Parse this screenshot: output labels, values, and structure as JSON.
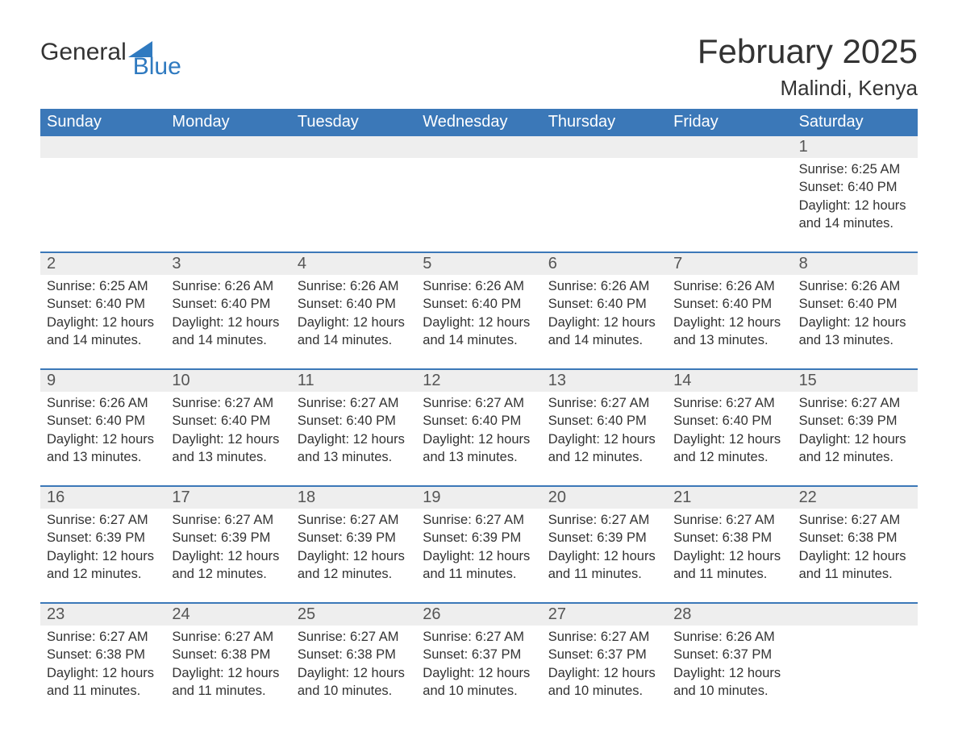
{
  "logo": {
    "text1": "General",
    "text2": "Blue"
  },
  "title": "February 2025",
  "location": "Malindi, Kenya",
  "colors": {
    "header_bg": "#3b78b8",
    "header_text": "#ffffff",
    "daynum_bg": "#eeeeee",
    "daynum_text": "#555555",
    "body_text": "#333333",
    "logo_blue": "#2f7ac0",
    "week_border": "#3b78b8",
    "page_bg": "#ffffff"
  },
  "fonts": {
    "title_size_pt": 32,
    "location_size_pt": 20,
    "weekday_size_pt": 15,
    "daynum_size_pt": 15,
    "body_size_pt": 12
  },
  "weekdays": [
    "Sunday",
    "Monday",
    "Tuesday",
    "Wednesday",
    "Thursday",
    "Friday",
    "Saturday"
  ],
  "weeks": [
    {
      "nums": [
        "",
        "",
        "",
        "",
        "",
        "",
        "1"
      ],
      "cells": [
        {},
        {},
        {},
        {},
        {},
        {},
        {
          "sunrise": "Sunrise: 6:25 AM",
          "sunset": "Sunset: 6:40 PM",
          "daylight1": "Daylight: 12 hours",
          "daylight2": "and 14 minutes."
        }
      ]
    },
    {
      "nums": [
        "2",
        "3",
        "4",
        "5",
        "6",
        "7",
        "8"
      ],
      "cells": [
        {
          "sunrise": "Sunrise: 6:25 AM",
          "sunset": "Sunset: 6:40 PM",
          "daylight1": "Daylight: 12 hours",
          "daylight2": "and 14 minutes."
        },
        {
          "sunrise": "Sunrise: 6:26 AM",
          "sunset": "Sunset: 6:40 PM",
          "daylight1": "Daylight: 12 hours",
          "daylight2": "and 14 minutes."
        },
        {
          "sunrise": "Sunrise: 6:26 AM",
          "sunset": "Sunset: 6:40 PM",
          "daylight1": "Daylight: 12 hours",
          "daylight2": "and 14 minutes."
        },
        {
          "sunrise": "Sunrise: 6:26 AM",
          "sunset": "Sunset: 6:40 PM",
          "daylight1": "Daylight: 12 hours",
          "daylight2": "and 14 minutes."
        },
        {
          "sunrise": "Sunrise: 6:26 AM",
          "sunset": "Sunset: 6:40 PM",
          "daylight1": "Daylight: 12 hours",
          "daylight2": "and 14 minutes."
        },
        {
          "sunrise": "Sunrise: 6:26 AM",
          "sunset": "Sunset: 6:40 PM",
          "daylight1": "Daylight: 12 hours",
          "daylight2": "and 13 minutes."
        },
        {
          "sunrise": "Sunrise: 6:26 AM",
          "sunset": "Sunset: 6:40 PM",
          "daylight1": "Daylight: 12 hours",
          "daylight2": "and 13 minutes."
        }
      ]
    },
    {
      "nums": [
        "9",
        "10",
        "11",
        "12",
        "13",
        "14",
        "15"
      ],
      "cells": [
        {
          "sunrise": "Sunrise: 6:26 AM",
          "sunset": "Sunset: 6:40 PM",
          "daylight1": "Daylight: 12 hours",
          "daylight2": "and 13 minutes."
        },
        {
          "sunrise": "Sunrise: 6:27 AM",
          "sunset": "Sunset: 6:40 PM",
          "daylight1": "Daylight: 12 hours",
          "daylight2": "and 13 minutes."
        },
        {
          "sunrise": "Sunrise: 6:27 AM",
          "sunset": "Sunset: 6:40 PM",
          "daylight1": "Daylight: 12 hours",
          "daylight2": "and 13 minutes."
        },
        {
          "sunrise": "Sunrise: 6:27 AM",
          "sunset": "Sunset: 6:40 PM",
          "daylight1": "Daylight: 12 hours",
          "daylight2": "and 13 minutes."
        },
        {
          "sunrise": "Sunrise: 6:27 AM",
          "sunset": "Sunset: 6:40 PM",
          "daylight1": "Daylight: 12 hours",
          "daylight2": "and 12 minutes."
        },
        {
          "sunrise": "Sunrise: 6:27 AM",
          "sunset": "Sunset: 6:40 PM",
          "daylight1": "Daylight: 12 hours",
          "daylight2": "and 12 minutes."
        },
        {
          "sunrise": "Sunrise: 6:27 AM",
          "sunset": "Sunset: 6:39 PM",
          "daylight1": "Daylight: 12 hours",
          "daylight2": "and 12 minutes."
        }
      ]
    },
    {
      "nums": [
        "16",
        "17",
        "18",
        "19",
        "20",
        "21",
        "22"
      ],
      "cells": [
        {
          "sunrise": "Sunrise: 6:27 AM",
          "sunset": "Sunset: 6:39 PM",
          "daylight1": "Daylight: 12 hours",
          "daylight2": "and 12 minutes."
        },
        {
          "sunrise": "Sunrise: 6:27 AM",
          "sunset": "Sunset: 6:39 PM",
          "daylight1": "Daylight: 12 hours",
          "daylight2": "and 12 minutes."
        },
        {
          "sunrise": "Sunrise: 6:27 AM",
          "sunset": "Sunset: 6:39 PM",
          "daylight1": "Daylight: 12 hours",
          "daylight2": "and 12 minutes."
        },
        {
          "sunrise": "Sunrise: 6:27 AM",
          "sunset": "Sunset: 6:39 PM",
          "daylight1": "Daylight: 12 hours",
          "daylight2": "and 11 minutes."
        },
        {
          "sunrise": "Sunrise: 6:27 AM",
          "sunset": "Sunset: 6:39 PM",
          "daylight1": "Daylight: 12 hours",
          "daylight2": "and 11 minutes."
        },
        {
          "sunrise": "Sunrise: 6:27 AM",
          "sunset": "Sunset: 6:38 PM",
          "daylight1": "Daylight: 12 hours",
          "daylight2": "and 11 minutes."
        },
        {
          "sunrise": "Sunrise: 6:27 AM",
          "sunset": "Sunset: 6:38 PM",
          "daylight1": "Daylight: 12 hours",
          "daylight2": "and 11 minutes."
        }
      ]
    },
    {
      "nums": [
        "23",
        "24",
        "25",
        "26",
        "27",
        "28",
        ""
      ],
      "cells": [
        {
          "sunrise": "Sunrise: 6:27 AM",
          "sunset": "Sunset: 6:38 PM",
          "daylight1": "Daylight: 12 hours",
          "daylight2": "and 11 minutes."
        },
        {
          "sunrise": "Sunrise: 6:27 AM",
          "sunset": "Sunset: 6:38 PM",
          "daylight1": "Daylight: 12 hours",
          "daylight2": "and 11 minutes."
        },
        {
          "sunrise": "Sunrise: 6:27 AM",
          "sunset": "Sunset: 6:38 PM",
          "daylight1": "Daylight: 12 hours",
          "daylight2": "and 10 minutes."
        },
        {
          "sunrise": "Sunrise: 6:27 AM",
          "sunset": "Sunset: 6:37 PM",
          "daylight1": "Daylight: 12 hours",
          "daylight2": "and 10 minutes."
        },
        {
          "sunrise": "Sunrise: 6:27 AM",
          "sunset": "Sunset: 6:37 PM",
          "daylight1": "Daylight: 12 hours",
          "daylight2": "and 10 minutes."
        },
        {
          "sunrise": "Sunrise: 6:26 AM",
          "sunset": "Sunset: 6:37 PM",
          "daylight1": "Daylight: 12 hours",
          "daylight2": "and 10 minutes."
        },
        {}
      ]
    }
  ]
}
